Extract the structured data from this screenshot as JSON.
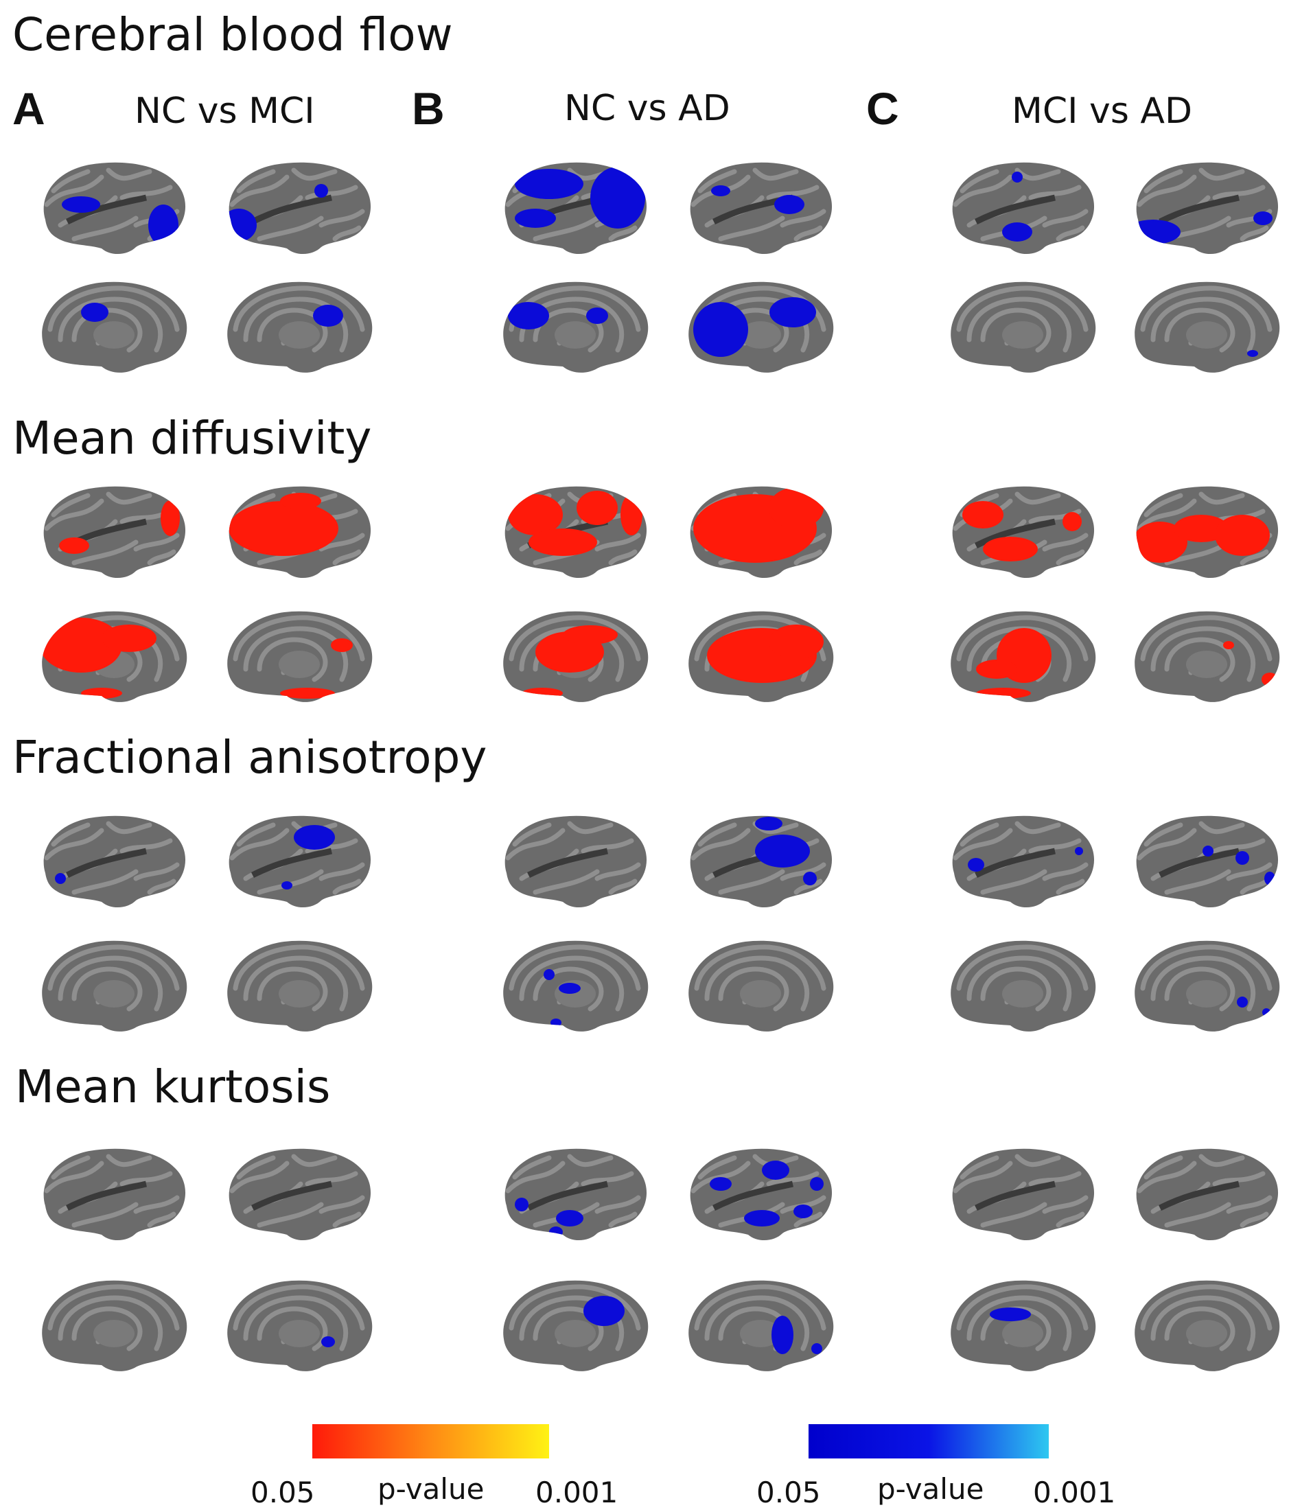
{
  "sections": [
    {
      "title": "Cerebral blood flow",
      "color": "#0b0bd8"
    },
    {
      "title": "Mean diffusivity",
      "color": "#ff1a0a"
    },
    {
      "title": "Fractional anisotropy",
      "color": "#0b0bd8"
    },
    {
      "title": "Mean kurtosis",
      "color": "#0b0bd8"
    }
  ],
  "columns": [
    {
      "letter": "A",
      "title": "NC vs MCI"
    },
    {
      "letter": "B",
      "title": "NC vs AD"
    },
    {
      "letter": "C",
      "title": "MCI vs AD"
    }
  ],
  "colorbars": [
    {
      "gradient": [
        "#ff1a0a",
        "#ff8a14",
        "#fff214"
      ],
      "low": "0.05",
      "label": "p-value",
      "high": "0.001"
    },
    {
      "gradient": [
        "#0000cc",
        "#0a14e6",
        "#2ec8f0"
      ],
      "low": "0.05",
      "label": "p-value",
      "high": "0.001"
    }
  ],
  "colors": {
    "brain": "#6b6b6b",
    "sulci": "#8f8f8f",
    "background": "#ffffff"
  }
}
